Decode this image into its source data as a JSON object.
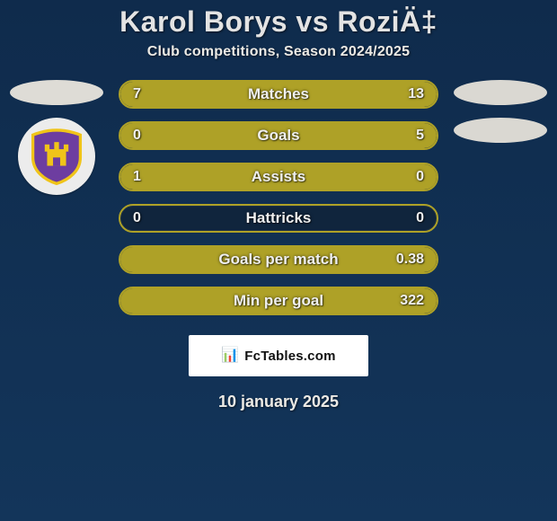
{
  "colors": {
    "bg_top": "#0f2b4c",
    "bg_bottom": "#13355a",
    "title": "#e3e3e3",
    "subtitle": "#eceae5",
    "statText": "#efefef",
    "accent": "#aea127",
    "track": "#10253d",
    "ellipseL": "#dedcd6",
    "ellipseR": "#dad8d2",
    "brandBg": "#ffffff",
    "brandTxt": "#111111",
    "badgeBg": "#ececec"
  },
  "header": {
    "title": "Karol Borys vs RoziÄ‡",
    "title_fontsize": 32,
    "subtitle": "Club competitions, Season 2024/2025",
    "subtitle_fontsize": 16
  },
  "left_side": {
    "ellipses": 1,
    "club": {
      "name": "NK Maribor",
      "shield_fill": "#6d3da0",
      "shield_stroke": "#f0c419",
      "castle_fill": "#f0c419"
    }
  },
  "right_side": {
    "ellipses": 2
  },
  "stats": {
    "font_size_label": 17,
    "font_size_value": 16,
    "bars": [
      {
        "label": "Matches",
        "left": "7",
        "right": "13",
        "left_pct": 35,
        "right_pct": 65
      },
      {
        "label": "Goals",
        "left": "0",
        "right": "5",
        "left_pct": 0,
        "right_pct": 100
      },
      {
        "label": "Assists",
        "left": "1",
        "right": "0",
        "left_pct": 100,
        "right_pct": 0
      },
      {
        "label": "Hattricks",
        "left": "0",
        "right": "0",
        "left_pct": 0,
        "right_pct": 0
      },
      {
        "label": "Goals per match",
        "left": "",
        "right": "0.38",
        "left_pct": 0,
        "right_pct": 100
      },
      {
        "label": "Min per goal",
        "left": "",
        "right": "322",
        "left_pct": 0,
        "right_pct": 100
      }
    ]
  },
  "brand": {
    "text": "FcTables.com",
    "icon": "📊",
    "font_size": 15
  },
  "footer": {
    "date": "10 january 2025",
    "font_size": 18
  }
}
